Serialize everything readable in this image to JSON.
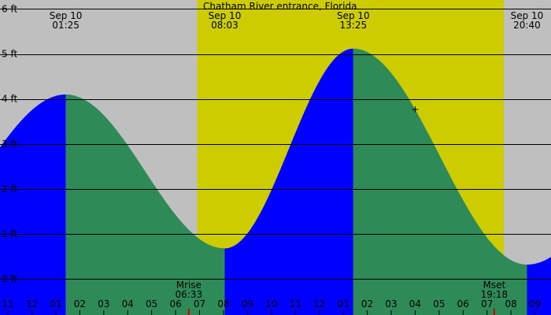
{
  "chart_data": {
    "type": "area",
    "title": "Chatham River entrance, Florida",
    "y_unit": "ft",
    "ylim": [
      -0.8,
      6.2
    ],
    "y_ticks": [
      {
        "value": 0,
        "label": "0 ft"
      },
      {
        "value": 1,
        "label": "1 ft"
      },
      {
        "value": 2,
        "label": "2 ft"
      },
      {
        "value": 3,
        "label": "3 ft"
      },
      {
        "value": 4,
        "label": "4 ft"
      },
      {
        "value": 5,
        "label": "5 ft"
      },
      {
        "value": 6,
        "label": "6 ft"
      }
    ],
    "xlim_hours": [
      -1.33,
      21.67
    ],
    "daylight": {
      "start_hour": 6.9,
      "end_hour": 19.7
    },
    "tide_extremes": [
      {
        "hour": 1.4167,
        "height": 4.1,
        "type": "high",
        "date_label": "Sep 10",
        "time_label": "01:25"
      },
      {
        "hour": 8.05,
        "height": 0.68,
        "type": "low",
        "date_label": "Sep 10",
        "time_label": "08:03"
      },
      {
        "hour": 13.4167,
        "height": 5.12,
        "type": "high",
        "date_label": "Sep 10",
        "time_label": "13:25"
      },
      {
        "hour": 20.6667,
        "height": 0.32,
        "type": "low",
        "date_label": "Sep 10",
        "time_label": "20:40"
      }
    ],
    "start_height": 2.7,
    "end_height": 0.8,
    "hour_ticks": [
      {
        "hour": -1,
        "label": "11"
      },
      {
        "hour": 0,
        "label": "12"
      },
      {
        "hour": 1,
        "label": "01"
      },
      {
        "hour": 2,
        "label": "02"
      },
      {
        "hour": 3,
        "label": "03"
      },
      {
        "hour": 4,
        "label": "04"
      },
      {
        "hour": 5,
        "label": "05"
      },
      {
        "hour": 6,
        "label": "06"
      },
      {
        "hour": 7,
        "label": "07"
      },
      {
        "hour": 8,
        "label": "08"
      },
      {
        "hour": 9,
        "label": "09"
      },
      {
        "hour": 10,
        "label": "10"
      },
      {
        "hour": 11,
        "label": "11"
      },
      {
        "hour": 12,
        "label": "12"
      },
      {
        "hour": 13,
        "label": "01"
      },
      {
        "hour": 14,
        "label": "02"
      },
      {
        "hour": 15,
        "label": "03"
      },
      {
        "hour": 16,
        "label": "04"
      },
      {
        "hour": 17,
        "label": "05"
      },
      {
        "hour": 18,
        "label": "06"
      },
      {
        "hour": 19,
        "label": "07"
      },
      {
        "hour": 20,
        "label": "08"
      },
      {
        "hour": 21,
        "label": "09"
      }
    ],
    "moon_events": [
      {
        "label": "Mrise",
        "time_label": "06:33",
        "hour": 6.55
      },
      {
        "label": "Mset",
        "time_label": "19:18",
        "hour": 19.3
      }
    ],
    "current_time_hour": 16.0,
    "colors": {
      "night": "#bfbfbf",
      "day": "#cccc00",
      "rising": "#0000ff",
      "falling": "#2e8b57",
      "grid": "#000000",
      "moon_tick": "#cc0000"
    }
  }
}
